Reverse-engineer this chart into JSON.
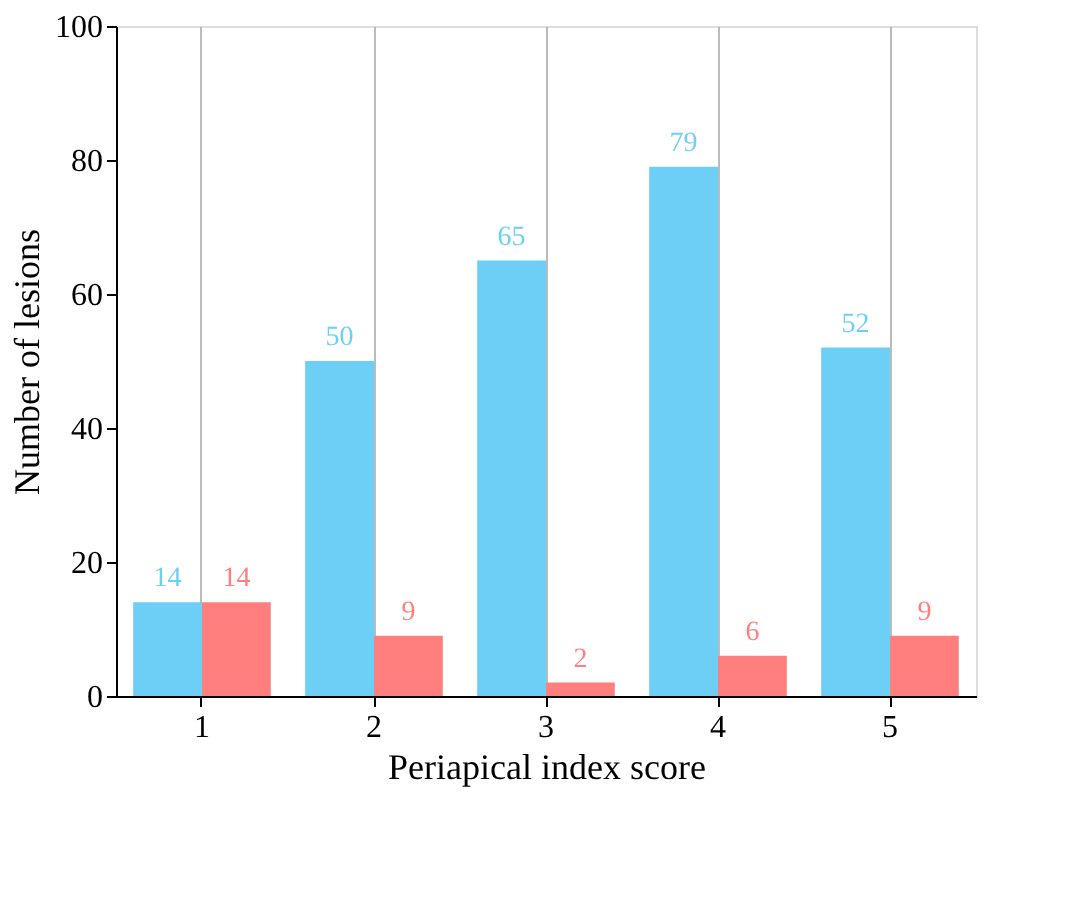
{
  "chart_data": {
    "type": "bar",
    "xlabel": "Periapical index score",
    "ylabel": "Number of lesions",
    "categories": [
      "1",
      "2",
      "3",
      "4",
      "5"
    ],
    "series": [
      {
        "color": "#6dcff6",
        "values": [
          14,
          50,
          65,
          79,
          52
        ]
      },
      {
        "color": "#ff7f7f",
        "values": [
          14,
          9,
          2,
          6,
          9
        ]
      }
    ],
    "ylim": [
      0,
      100
    ],
    "yticks": [
      0,
      20,
      40,
      60,
      80,
      100
    ],
    "grid": "x",
    "data_labels": true
  }
}
